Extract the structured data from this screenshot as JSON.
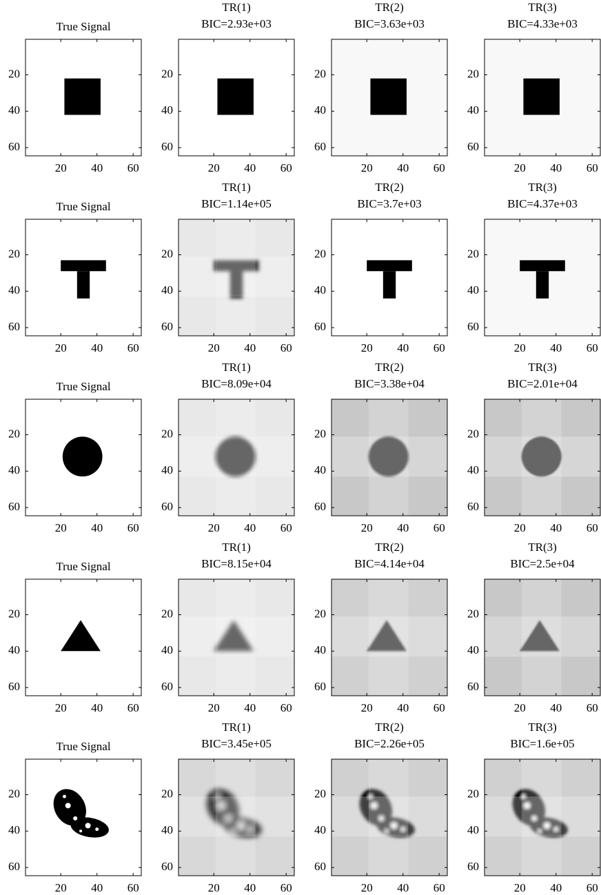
{
  "chart_data": [
    {
      "type": "image",
      "title": "True Signal",
      "xlim": [
        0.5,
        64.5
      ],
      "ylim": [
        0.5,
        64.5
      ],
      "y_reversed": true,
      "xticks": [
        20,
        40,
        60
      ],
      "yticks": [
        20,
        40,
        60
      ],
      "background": "#ffffff"
    },
    {
      "type": "image",
      "title": "TR(1)",
      "subtitle": "BIC=2.93e+03",
      "xlim": [
        0.5,
        64.5
      ],
      "ylim": [
        0.5,
        64.5
      ],
      "y_reversed": true,
      "xticks": [
        20,
        40,
        60
      ],
      "yticks": [
        20,
        40,
        60
      ],
      "background": "#ffffff"
    },
    {
      "type": "image",
      "title": "TR(2)",
      "subtitle": "BIC=3.63e+03",
      "xlim": [
        0.5,
        64.5
      ],
      "ylim": [
        0.5,
        64.5
      ],
      "y_reversed": true,
      "xticks": [
        20,
        40,
        60
      ],
      "yticks": [
        20,
        40,
        60
      ],
      "background": "#f8f8f8"
    },
    {
      "type": "image",
      "title": "TR(3)",
      "subtitle": "BIC=4.33e+03",
      "xlim": [
        0.5,
        64.5
      ],
      "ylim": [
        0.5,
        64.5
      ],
      "y_reversed": true,
      "xticks": [
        20,
        40,
        60
      ],
      "yticks": [
        20,
        40,
        60
      ],
      "background": "#f8f8f8"
    },
    {
      "type": "image",
      "title": "True Signal",
      "xlim": [
        0.5,
        64.5
      ],
      "ylim": [
        0.5,
        64.5
      ],
      "y_reversed": true,
      "xticks": [
        20,
        40,
        60
      ],
      "yticks": [
        20,
        40,
        60
      ],
      "background": "#ffffff"
    },
    {
      "type": "image",
      "title": "TR(1)",
      "subtitle": "BIC=1.14e+05",
      "xlim": [
        0.5,
        64.5
      ],
      "ylim": [
        0.5,
        64.5
      ],
      "y_reversed": true,
      "xticks": [
        20,
        40,
        60
      ],
      "yticks": [
        20,
        40,
        60
      ],
      "background": "#e8e8e8"
    },
    {
      "type": "image",
      "title": "TR(2)",
      "subtitle": "BIC=3.7e+03",
      "xlim": [
        0.5,
        64.5
      ],
      "ylim": [
        0.5,
        64.5
      ],
      "y_reversed": true,
      "xticks": [
        20,
        40,
        60
      ],
      "yticks": [
        20,
        40,
        60
      ],
      "background": "#ffffff"
    },
    {
      "type": "image",
      "title": "TR(3)",
      "subtitle": "BIC=4.37e+03",
      "xlim": [
        0.5,
        64.5
      ],
      "ylim": [
        0.5,
        64.5
      ],
      "y_reversed": true,
      "xticks": [
        20,
        40,
        60
      ],
      "yticks": [
        20,
        40,
        60
      ],
      "background": "#f8f8f8"
    },
    {
      "type": "image",
      "title": "True Signal",
      "xlim": [
        0.5,
        64.5
      ],
      "ylim": [
        0.5,
        64.5
      ],
      "y_reversed": true,
      "xticks": [
        20,
        40,
        60
      ],
      "yticks": [
        20,
        40,
        60
      ],
      "background": "#ffffff"
    },
    {
      "type": "image",
      "title": "TR(1)",
      "subtitle": "BIC=8.09e+04",
      "xlim": [
        0.5,
        64.5
      ],
      "ylim": [
        0.5,
        64.5
      ],
      "y_reversed": true,
      "xticks": [
        20,
        40,
        60
      ],
      "yticks": [
        20,
        40,
        60
      ],
      "background": "#e8e8e8"
    },
    {
      "type": "image",
      "title": "TR(2)",
      "subtitle": "BIC=3.38e+04",
      "xlim": [
        0.5,
        64.5
      ],
      "ylim": [
        0.5,
        64.5
      ],
      "y_reversed": true,
      "xticks": [
        20,
        40,
        60
      ],
      "yticks": [
        20,
        40,
        60
      ],
      "background": "#c8c8c8"
    },
    {
      "type": "image",
      "title": "TR(3)",
      "subtitle": "BIC=2.01e+04",
      "xlim": [
        0.5,
        64.5
      ],
      "ylim": [
        0.5,
        64.5
      ],
      "y_reversed": true,
      "xticks": [
        20,
        40,
        60
      ],
      "yticks": [
        20,
        40,
        60
      ],
      "background": "#c8c8c8"
    },
    {
      "type": "image",
      "title": "True Signal",
      "xlim": [
        0.5,
        64.5
      ],
      "ylim": [
        0.5,
        64.5
      ],
      "y_reversed": true,
      "xticks": [
        20,
        40,
        60
      ],
      "yticks": [
        20,
        40,
        60
      ],
      "background": "#ffffff"
    },
    {
      "type": "image",
      "title": "TR(1)",
      "subtitle": "BIC=8.15e+04",
      "xlim": [
        0.5,
        64.5
      ],
      "ylim": [
        0.5,
        64.5
      ],
      "y_reversed": true,
      "xticks": [
        20,
        40,
        60
      ],
      "yticks": [
        20,
        40,
        60
      ],
      "background": "#e8e8e8"
    },
    {
      "type": "image",
      "title": "TR(2)",
      "subtitle": "BIC=4.14e+04",
      "xlim": [
        0.5,
        64.5
      ],
      "ylim": [
        0.5,
        64.5
      ],
      "y_reversed": true,
      "xticks": [
        20,
        40,
        60
      ],
      "yticks": [
        20,
        40,
        60
      ],
      "background": "#d0d0d0"
    },
    {
      "type": "image",
      "title": "TR(3)",
      "subtitle": "BIC=2.5e+04",
      "xlim": [
        0.5,
        64.5
      ],
      "ylim": [
        0.5,
        64.5
      ],
      "y_reversed": true,
      "xticks": [
        20,
        40,
        60
      ],
      "yticks": [
        20,
        40,
        60
      ],
      "background": "#c8c8c8"
    },
    {
      "type": "image",
      "title": "True Signal",
      "xlim": [
        0.5,
        64.5
      ],
      "ylim": [
        0.5,
        64.5
      ],
      "y_reversed": true,
      "xticks": [
        20,
        40,
        60
      ],
      "yticks": [
        20,
        40,
        60
      ],
      "background": "#ffffff"
    },
    {
      "type": "image",
      "title": "TR(1)",
      "subtitle": "BIC=3.45e+05",
      "xlim": [
        0.5,
        64.5
      ],
      "ylim": [
        0.5,
        64.5
      ],
      "y_reversed": true,
      "xticks": [
        20,
        40,
        60
      ],
      "yticks": [
        20,
        40,
        60
      ],
      "background": "#d8d8d8"
    },
    {
      "type": "image",
      "title": "TR(2)",
      "subtitle": "BIC=2.26e+05",
      "xlim": [
        0.5,
        64.5
      ],
      "ylim": [
        0.5,
        64.5
      ],
      "y_reversed": true,
      "xticks": [
        20,
        40,
        60
      ],
      "yticks": [
        20,
        40,
        60
      ],
      "background": "#d0d0d0"
    },
    {
      "type": "image",
      "title": "TR(3)",
      "subtitle": "BIC=1.6e+05",
      "xlim": [
        0.5,
        64.5
      ],
      "ylim": [
        0.5,
        64.5
      ],
      "y_reversed": true,
      "xticks": [
        20,
        40,
        60
      ],
      "yticks": [
        20,
        40,
        60
      ],
      "background": "#d0d0d0"
    }
  ]
}
